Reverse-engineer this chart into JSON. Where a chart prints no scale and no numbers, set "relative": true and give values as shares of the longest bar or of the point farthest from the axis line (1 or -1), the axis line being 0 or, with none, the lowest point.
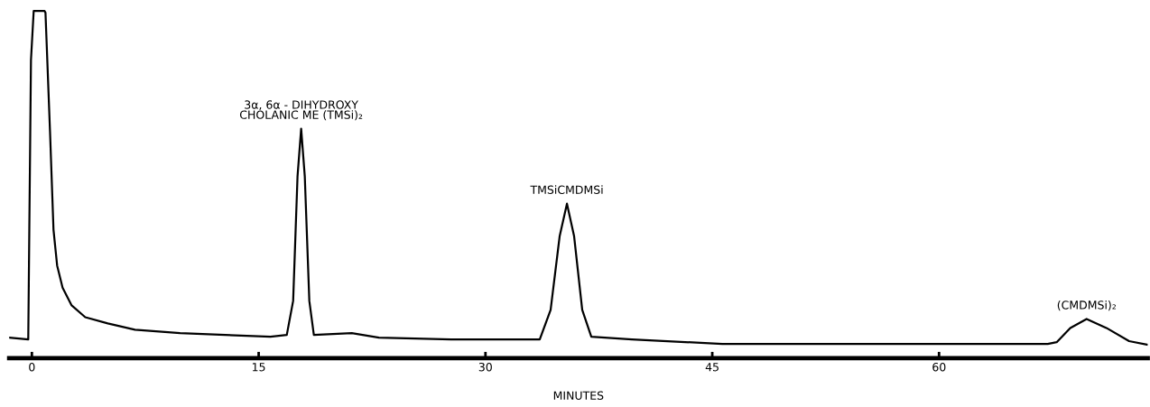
{
  "chart_data": {
    "type": "line",
    "relative": true,
    "xlabel": "MINUTES",
    "xlim": [
      -1.5,
      73.8
    ],
    "xticks": [
      0,
      15,
      30,
      45,
      60
    ],
    "tick_labels": "x",
    "grid": false,
    "legend": false,
    "marker": "none",
    "line_style": "solid",
    "series": [
      {
        "color": "#000000",
        "x": [
          -1.49,
          -0.24,
          -0.06,
          0.12,
          0.42,
          0.84,
          0.9,
          1.2,
          1.43,
          1.67,
          2.03,
          2.63,
          3.53,
          5.02,
          6.82,
          9.8,
          12.79,
          15.78,
          16.86,
          17.28,
          17.57,
          17.81,
          18.05,
          18.35,
          18.65,
          21.16,
          22.95,
          27.73,
          33.59,
          34.31,
          34.91,
          35.39,
          35.86,
          36.4,
          37.0,
          39.69,
          45.67,
          51.64,
          57.62,
          63.6,
          67.19,
          67.78,
          68.68,
          69.76,
          71.07,
          72.57,
          73.76
        ],
        "values": [
          0.059,
          0.054,
          0.859,
          1.0,
          1.0,
          1.0,
          0.995,
          0.653,
          0.37,
          0.267,
          0.203,
          0.152,
          0.118,
          0.1,
          0.082,
          0.072,
          0.067,
          0.062,
          0.067,
          0.165,
          0.524,
          0.661,
          0.524,
          0.165,
          0.067,
          0.072,
          0.059,
          0.054,
          0.054,
          0.139,
          0.352,
          0.445,
          0.352,
          0.139,
          0.062,
          0.054,
          0.041,
          0.041,
          0.041,
          0.041,
          0.041,
          0.046,
          0.087,
          0.113,
          0.087,
          0.049,
          0.039
        ]
      }
    ],
    "annotations": [
      {
        "text": "3α, 6α - DIHYDROXY\nCHOLANIC ME (TMSi)₂",
        "x": 17.81,
        "y": 0.661
      },
      {
        "text": "TMSiCMDMSi",
        "x": 35.39,
        "y": 0.445
      },
      {
        "text": "(CMDMSi)₂",
        "x": 69.76,
        "y": 0.113
      }
    ]
  }
}
